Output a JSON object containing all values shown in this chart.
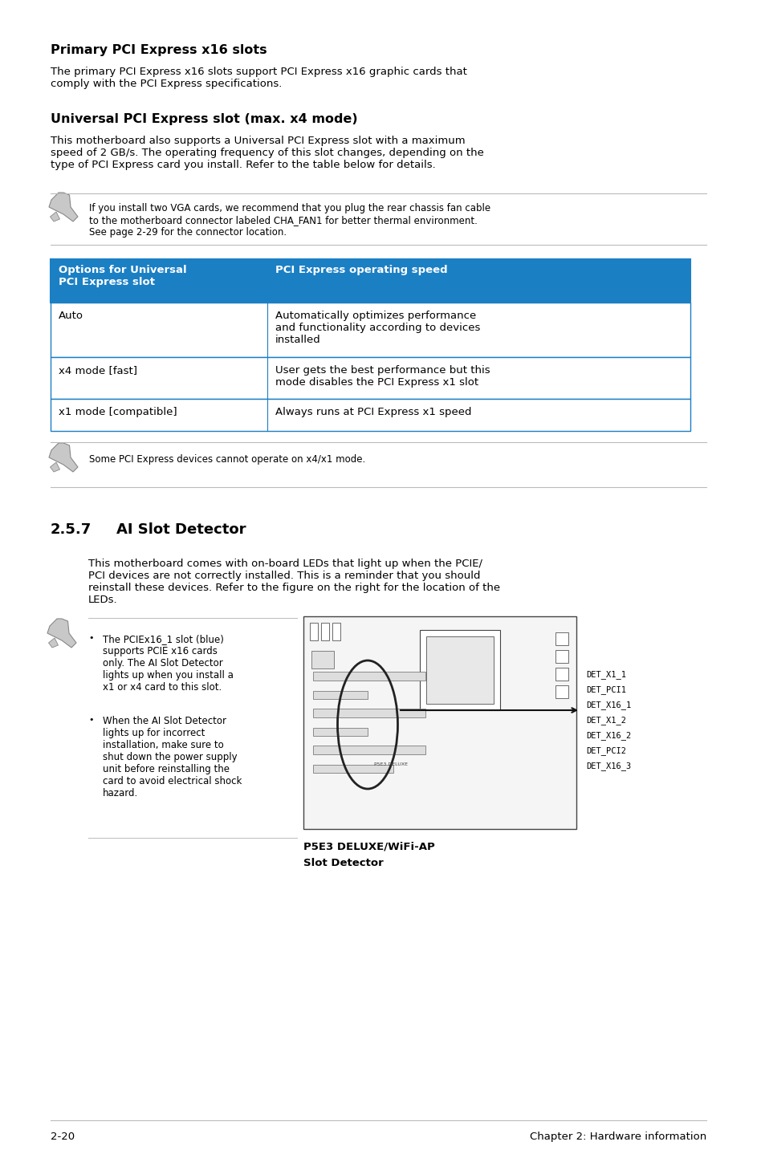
{
  "bg_color": "#ffffff",
  "section1_title": "Primary PCI Express x16 slots",
  "section1_body": "The primary PCI Express x16 slots support PCI Express x16 graphic cards that\ncomply with the PCI Express specifications.",
  "section2_title": "Universal PCI Express slot (max. x4 mode)",
  "section2_body": "This motherboard also supports a Universal PCI Express slot with a maximum\nspeed of 2 GB/s. The operating frequency of this slot changes, depending on the\ntype of PCI Express card you install. Refer to the table below for details.",
  "note1_text": "If you install two VGA cards, we recommend that you plug the rear chassis fan cable\nto the motherboard connector labeled CHA_FAN1 for better thermal environment.\nSee page 2-29 for the connector location.",
  "table_header_col1": "Options for Universal\nPCI Express slot",
  "table_header_col2": "PCI Express operating speed",
  "table_header_bg": "#1b7fc4",
  "table_header_fg": "#ffffff",
  "table_row1_col1": "Auto",
  "table_row1_col2": "Automatically optimizes performance\nand functionality according to devices\ninstalled",
  "table_row2_col1": "x4 mode [fast]",
  "table_row2_col2": "User gets the best performance but this\nmode disables the PCI Express x1 slot",
  "table_row3_col1": "x1 mode [compatible]",
  "table_row3_col2": "Always runs at PCI Express x1 speed",
  "table_border_color": "#1b7fc4",
  "note2_text": "Some PCI Express devices cannot operate on x4/x1 mode.",
  "section3_num": "2.5.7",
  "section3_title": "AI Slot Detector",
  "section3_body": "This motherboard comes with on-board LEDs that light up when the PCIE/\nPCI devices are not correctly installed. This is a reminder that you should\nreinstall these devices. Refer to the figure on the right for the location of the\nLEDs.",
  "bullet1": "The PCIEx16_1 slot (blue)\nsupports PCIE x16 cards\nonly. The AI Slot Detector\nlights up when you install a\nx1 or x4 card to this slot.",
  "bullet2": "When the AI Slot Detector\nlights up for incorrect\ninstallation, make sure to\nshut down the power supply\nunit before reinstalling the\ncard to avoid electrical shock\nhazard.",
  "det_labels": [
    "DET_X1_1",
    "DET_PCI1",
    "DET_X16_1",
    "DET_X1_2",
    "DET_X16_2",
    "DET_PCI2",
    "DET_X16_3"
  ],
  "fig_caption_line1": "P5E3 DELUXE/WiFi-AP",
  "fig_caption_line2": "Slot Detector",
  "footer_left": "2-20",
  "footer_right": "Chapter 2: Hardware information",
  "rule_color": "#bbbbbb",
  "text_color": "#000000",
  "body_fontsize": 9.5,
  "small_fontsize": 8.5,
  "heading1_fontsize": 11.5,
  "heading2_fontsize": 13.0
}
